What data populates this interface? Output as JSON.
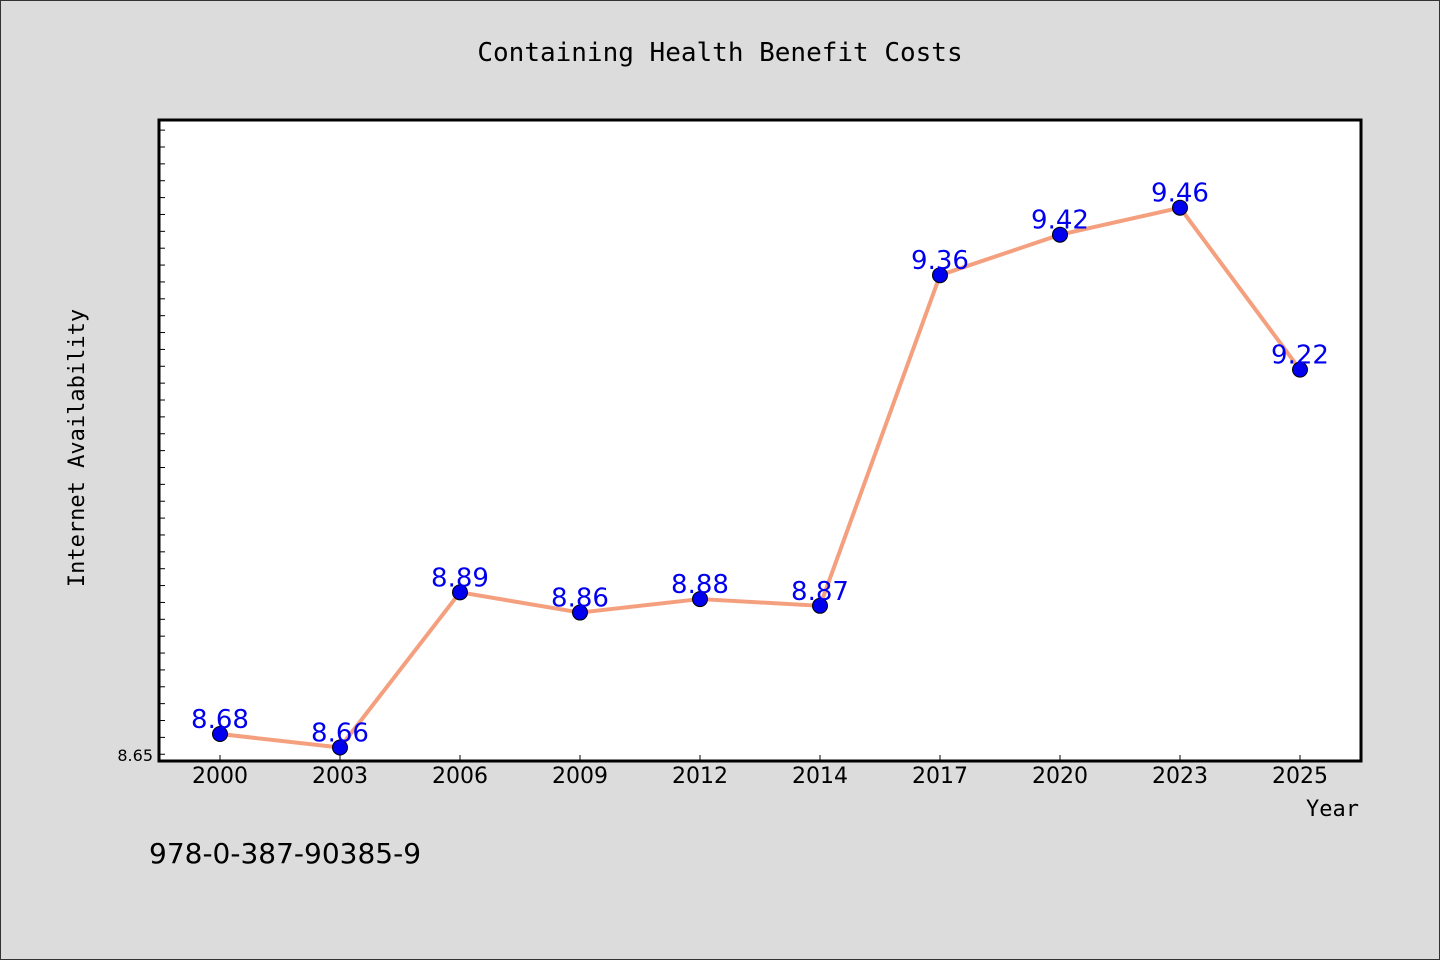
{
  "chart_data": {
    "type": "line",
    "title": "Containing Health Benefit Costs",
    "xlabel": "Year",
    "ylabel": "Internet Availability",
    "categories": [
      "2000",
      "2003",
      "2006",
      "2009",
      "2012",
      "2014",
      "2017",
      "2020",
      "2023",
      "2025"
    ],
    "series": [
      {
        "values": [
          8.68,
          8.66,
          8.89,
          8.86,
          8.88,
          8.87,
          9.36,
          9.42,
          9.46,
          9.22
        ],
        "line_color": "#f4a07e",
        "marker_color": "#0000ee",
        "label_color": "#0000ee"
      }
    ],
    "data_labels": [
      "8.68",
      "8.66",
      "8.89",
      "8.86",
      "8.88",
      "8.87",
      "9.36",
      "9.42",
      "9.46",
      "9.22"
    ],
    "yticks_labeled": [
      "8.65"
    ],
    "ylim": [
      8.64,
      9.59
    ],
    "grid": false,
    "legend": false
  },
  "annotation": {
    "isbn": "978-0-387-90385-9"
  },
  "colors": {
    "background": "#dcdcdc",
    "plot_background": "#ffffff"
  }
}
